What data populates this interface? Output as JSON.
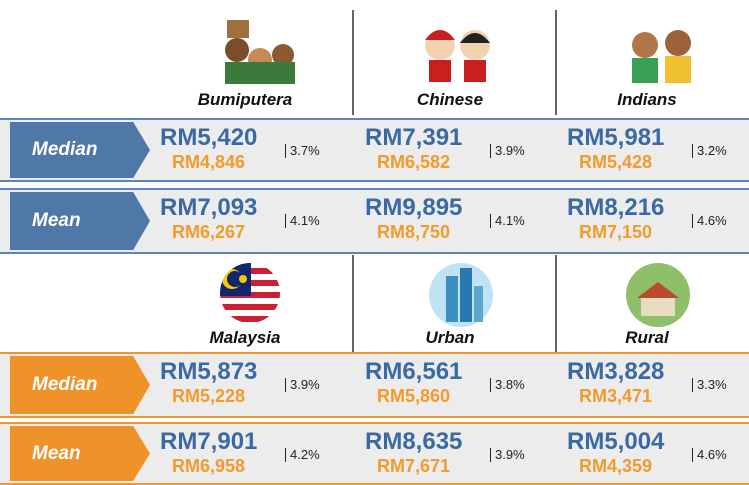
{
  "groups": [
    {
      "columns": [
        "Bumiputera",
        "Chinese",
        "Indians"
      ],
      "rows": [
        {
          "label": "Median",
          "cells": [
            {
              "current": "RM5,420",
              "previous": "RM4,846",
              "growth": "3.7%"
            },
            {
              "current": "RM7,391",
              "previous": "RM6,582",
              "growth": "3.9%"
            },
            {
              "current": "RM5,981",
              "previous": "RM5,428",
              "growth": "3.2%"
            }
          ]
        },
        {
          "label": "Mean",
          "cells": [
            {
              "current": "RM7,093",
              "previous": "RM6,267",
              "growth": "4.1%"
            },
            {
              "current": "RM9,895",
              "previous": "RM8,750",
              "growth": "4.1%"
            },
            {
              "current": "RM8,216",
              "previous": "RM7,150",
              "growth": "4.6%"
            }
          ]
        }
      ]
    },
    {
      "columns": [
        "Malaysia",
        "Urban",
        "Rural"
      ],
      "rows": [
        {
          "label": "Median",
          "cells": [
            {
              "current": "RM5,873",
              "previous": "RM5,228",
              "growth": "3.9%"
            },
            {
              "current": "RM6,561",
              "previous": "RM5,860",
              "growth": "3.8%"
            },
            {
              "current": "RM3,828",
              "previous": "RM3,471",
              "growth": "3.3%"
            }
          ]
        },
        {
          "label": "Mean",
          "cells": [
            {
              "current": "RM7,901",
              "previous": "RM6,958",
              "growth": "4.2%"
            },
            {
              "current": "RM8,635",
              "previous": "RM7,671",
              "growth": "3.9%"
            },
            {
              "current": "RM5,004",
              "previous": "RM4,359",
              "growth": "4.6%"
            }
          ]
        }
      ]
    }
  ]
}
